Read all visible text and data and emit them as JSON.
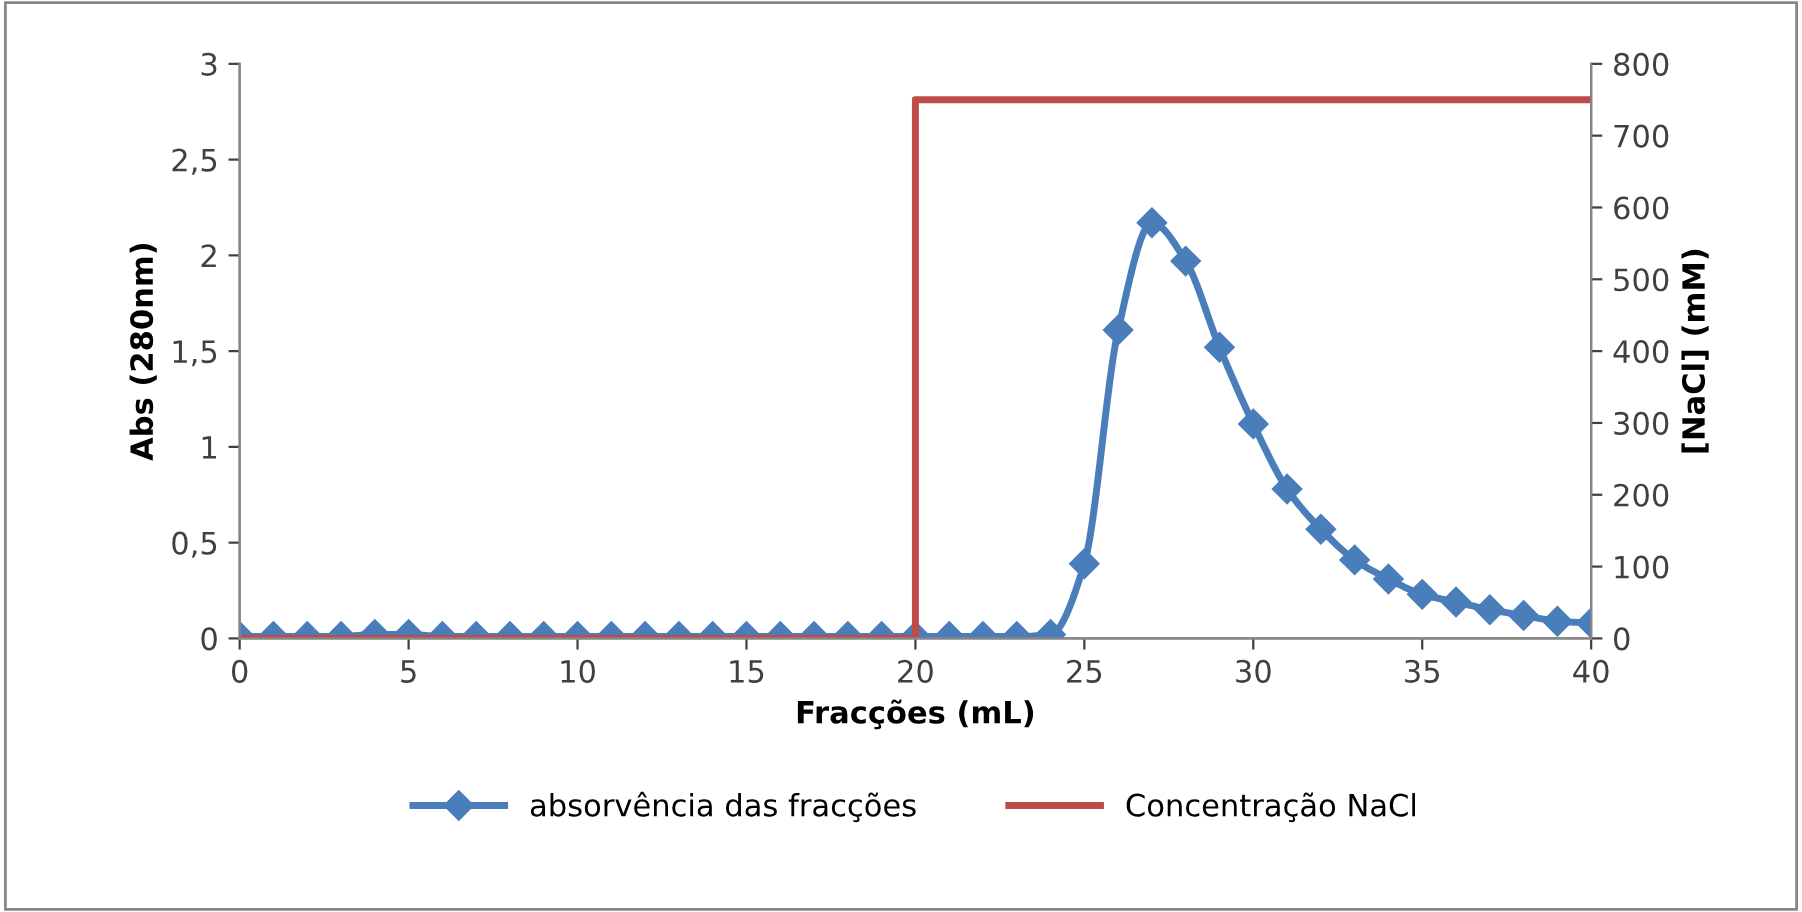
{
  "chart_data": {
    "type": "line",
    "xlabel": "Fracções (mL)",
    "ylabel": "Abs (280nm)",
    "y2label": "[NaCl] (mM)",
    "xlim": [
      0,
      40
    ],
    "xticks": [
      0,
      5,
      10,
      15,
      20,
      25,
      30,
      35,
      40
    ],
    "ylim": [
      0,
      3
    ],
    "yticks": [
      0,
      {
        "value": 0.5,
        "label": "0,5"
      },
      1,
      {
        "value": 1.5,
        "label": "1,5"
      },
      2,
      {
        "value": 2.5,
        "label": "2,5"
      },
      3
    ],
    "y2lim": [
      0,
      800
    ],
    "y2ticks": [
      0,
      100,
      200,
      300,
      400,
      500,
      600,
      700,
      800
    ],
    "grid": false,
    "legend": "bottom",
    "series": [
      {
        "name": "absorvência das fracções",
        "color": "#4a7ebb",
        "marker": "diamond",
        "x": [
          0,
          1,
          2,
          3,
          4,
          5,
          6,
          7,
          8,
          9,
          10,
          11,
          12,
          13,
          14,
          15,
          16,
          17,
          18,
          19,
          20,
          21,
          22,
          23,
          24,
          25,
          26,
          27,
          28,
          29,
          30,
          31,
          32,
          33,
          34,
          35,
          36,
          37,
          38,
          39,
          40
        ],
        "values": [
          0.01,
          0.01,
          0.01,
          0.01,
          0.02,
          0.02,
          0.01,
          0.01,
          0.01,
          0.01,
          0.01,
          0.01,
          0.01,
          0.01,
          0.01,
          0.01,
          0.01,
          0.01,
          0.01,
          0.01,
          0.01,
          0.01,
          0.01,
          0.01,
          0.02,
          0.39,
          1.61,
          2.17,
          1.97,
          1.52,
          1.12,
          0.78,
          0.57,
          0.41,
          0.31,
          0.23,
          0.19,
          0.15,
          0.12,
          0.09,
          0.08
        ]
      },
      {
        "name": "Concentração NaCl",
        "color": "#be4b48",
        "marker": "none",
        "axis": "y2",
        "x": [
          0,
          20,
          20,
          40
        ],
        "values": [
          0,
          0,
          750,
          750
        ]
      }
    ]
  }
}
